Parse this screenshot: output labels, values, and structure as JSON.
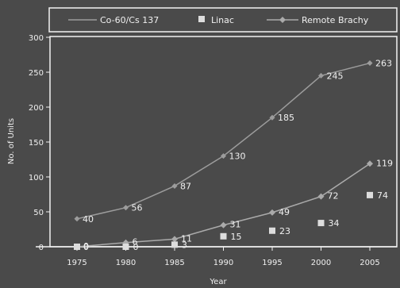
{
  "chart_data": {
    "type": "line",
    "title": "",
    "xlabel": "Year",
    "ylabel": "No. of Units",
    "x": [
      1975,
      1980,
      1985,
      1990,
      1995,
      2000,
      2005
    ],
    "ylim": [
      0,
      300
    ],
    "yticks": [
      0,
      50,
      100,
      150,
      200,
      250,
      300
    ],
    "grid": false,
    "legend_position": "top",
    "series": [
      {
        "name": "Co-60/Cs 137",
        "marker": "diamond",
        "values": [
          40,
          56,
          87,
          130,
          185,
          245,
          263
        ],
        "labels": [
          "40",
          "56",
          "87",
          "130",
          "185",
          "245",
          "263"
        ]
      },
      {
        "name": "Linac",
        "marker": "square",
        "values": [
          0,
          0,
          3,
          15,
          23,
          34,
          74
        ],
        "labels": [
          "0",
          "0",
          "3",
          "15",
          "23",
          "34",
          "74"
        ]
      },
      {
        "name": "Remote Brachy",
        "marker": "triangle",
        "values": [
          0,
          6,
          11,
          31,
          49,
          72,
          119
        ],
        "labels": [
          "0",
          "6",
          "11",
          "31",
          "49",
          "72",
          "119"
        ]
      }
    ]
  },
  "colors": {
    "background": "#4a4a4a",
    "plot_border": "#f2f2f2",
    "axis": "#f2f2f2",
    "text": "#f0f0f0",
    "co60_line": "#9c9c9c",
    "linac_marker": "#dddddd",
    "brachy_line": "#aaaaaa"
  }
}
